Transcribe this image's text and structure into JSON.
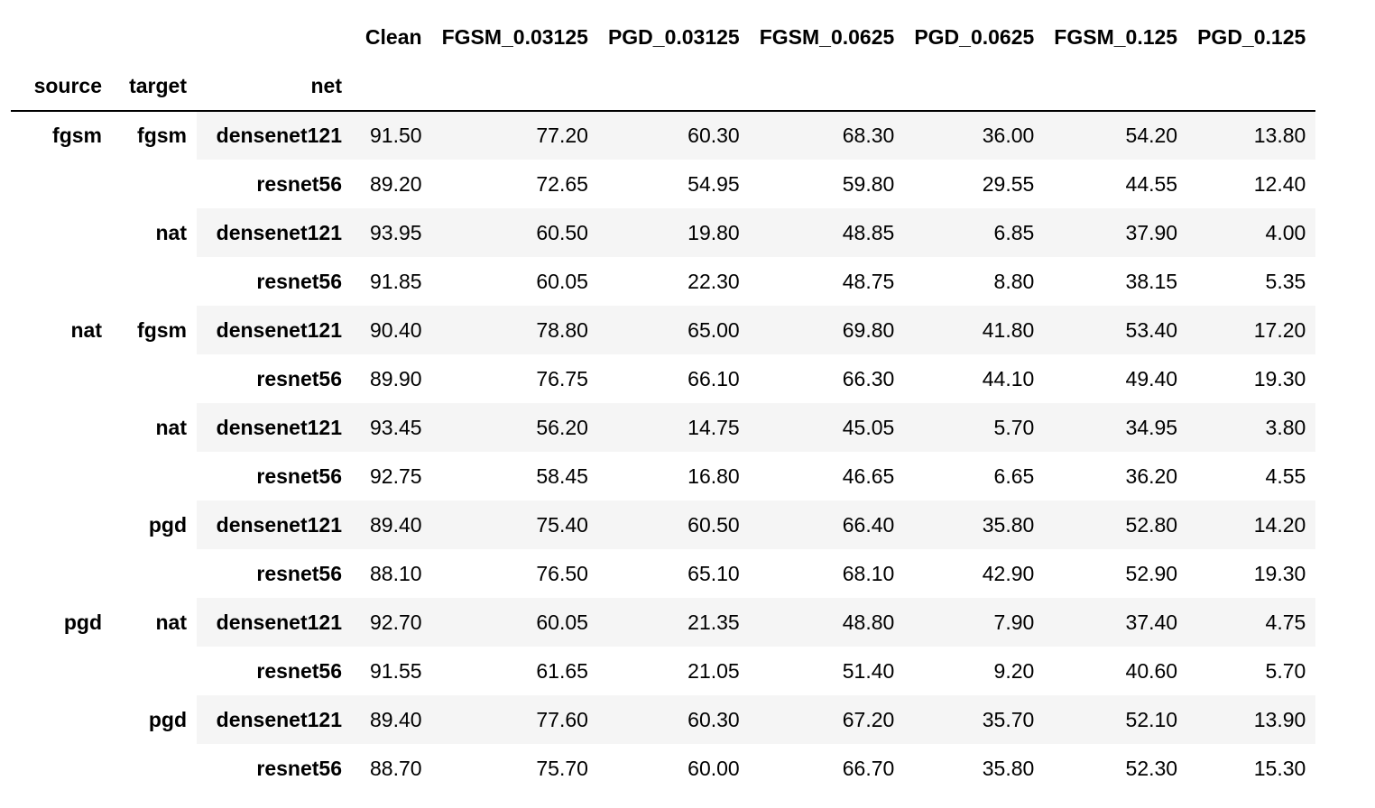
{
  "table": {
    "index_names": [
      "source",
      "target",
      "net"
    ],
    "columns": [
      "Clean",
      "FGSM_0.03125",
      "PGD_0.03125",
      "FGSM_0.0625",
      "PGD_0.0625",
      "FGSM_0.125",
      "PGD_0.125"
    ],
    "rows": [
      {
        "source": "fgsm",
        "target": "fgsm",
        "net": "densenet121",
        "values": [
          "91.50",
          "77.20",
          "60.30",
          "68.30",
          "36.00",
          "54.20",
          "13.80"
        ]
      },
      {
        "source": "",
        "target": "",
        "net": "resnet56",
        "values": [
          "89.20",
          "72.65",
          "54.95",
          "59.80",
          "29.55",
          "44.55",
          "12.40"
        ]
      },
      {
        "source": "",
        "target": "nat",
        "net": "densenet121",
        "values": [
          "93.95",
          "60.50",
          "19.80",
          "48.85",
          "6.85",
          "37.90",
          "4.00"
        ]
      },
      {
        "source": "",
        "target": "",
        "net": "resnet56",
        "values": [
          "91.85",
          "60.05",
          "22.30",
          "48.75",
          "8.80",
          "38.15",
          "5.35"
        ]
      },
      {
        "source": "nat",
        "target": "fgsm",
        "net": "densenet121",
        "values": [
          "90.40",
          "78.80",
          "65.00",
          "69.80",
          "41.80",
          "53.40",
          "17.20"
        ]
      },
      {
        "source": "",
        "target": "",
        "net": "resnet56",
        "values": [
          "89.90",
          "76.75",
          "66.10",
          "66.30",
          "44.10",
          "49.40",
          "19.30"
        ]
      },
      {
        "source": "",
        "target": "nat",
        "net": "densenet121",
        "values": [
          "93.45",
          "56.20",
          "14.75",
          "45.05",
          "5.70",
          "34.95",
          "3.80"
        ]
      },
      {
        "source": "",
        "target": "",
        "net": "resnet56",
        "values": [
          "92.75",
          "58.45",
          "16.80",
          "46.65",
          "6.65",
          "36.20",
          "4.55"
        ]
      },
      {
        "source": "",
        "target": "pgd",
        "net": "densenet121",
        "values": [
          "89.40",
          "75.40",
          "60.50",
          "66.40",
          "35.80",
          "52.80",
          "14.20"
        ]
      },
      {
        "source": "",
        "target": "",
        "net": "resnet56",
        "values": [
          "88.10",
          "76.50",
          "65.10",
          "68.10",
          "42.90",
          "52.90",
          "19.30"
        ]
      },
      {
        "source": "pgd",
        "target": "nat",
        "net": "densenet121",
        "values": [
          "92.70",
          "60.05",
          "21.35",
          "48.80",
          "7.90",
          "37.40",
          "4.75"
        ]
      },
      {
        "source": "",
        "target": "",
        "net": "resnet56",
        "values": [
          "91.55",
          "61.65",
          "21.05",
          "51.40",
          "9.20",
          "40.60",
          "5.70"
        ]
      },
      {
        "source": "",
        "target": "pgd",
        "net": "densenet121",
        "values": [
          "89.40",
          "77.60",
          "60.30",
          "67.20",
          "35.70",
          "52.10",
          "13.90"
        ]
      },
      {
        "source": "",
        "target": "",
        "net": "resnet56",
        "values": [
          "88.70",
          "75.70",
          "60.00",
          "66.70",
          "35.80",
          "52.30",
          "15.30"
        ]
      }
    ]
  }
}
